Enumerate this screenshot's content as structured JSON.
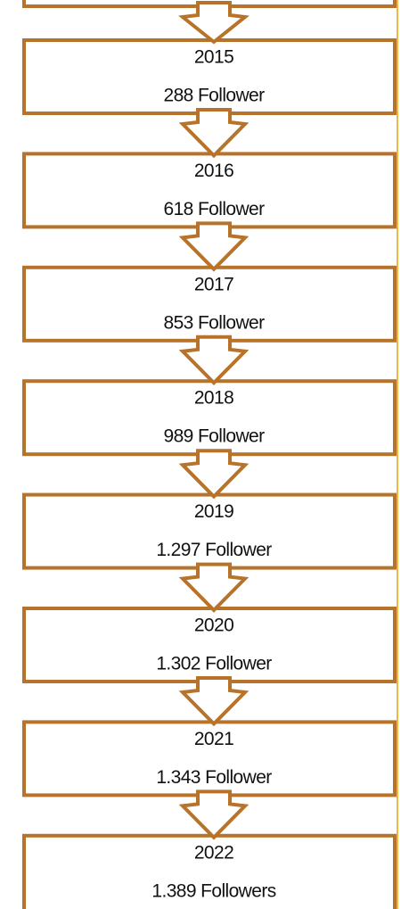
{
  "nodes": [
    {
      "year": "2015",
      "label": "288 Follower"
    },
    {
      "year": "2016",
      "label": "618 Follower"
    },
    {
      "year": "2017",
      "label": "853 Follower"
    },
    {
      "year": "2018",
      "label": "989 Follower"
    },
    {
      "year": "2019",
      "label": "1.297 Follower"
    },
    {
      "year": "2020",
      "label": "1.302 Follower"
    },
    {
      "year": "2021",
      "label": "1.343 Follower"
    },
    {
      "year": "2022",
      "label": "1.389 Followers"
    }
  ]
}
